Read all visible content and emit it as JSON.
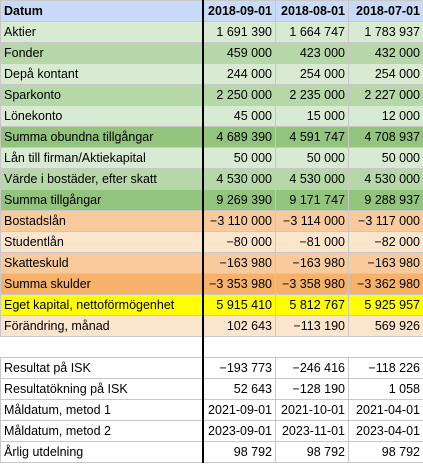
{
  "header": {
    "label": "Datum",
    "dates": [
      "2018-09-01",
      "2018-08-01",
      "2018-07-01"
    ]
  },
  "rows": [
    {
      "label": "Aktier",
      "values": [
        "1 691 390",
        "1 664 747",
        "1 783 937"
      ]
    },
    {
      "label": "Fonder",
      "values": [
        "459 000",
        "423 000",
        "432 000"
      ]
    },
    {
      "label": "Depå kontant",
      "values": [
        "244 000",
        "254 000",
        "254 000"
      ]
    },
    {
      "label": "Sparkonto",
      "values": [
        "2 250 000",
        "2 235 000",
        "2 227 000"
      ]
    },
    {
      "label": "Lönekonto",
      "values": [
        "45 000",
        "15 000",
        "12 000"
      ]
    },
    {
      "label": "Summa obundna tillgångar",
      "values": [
        "4 689 390",
        "4 591 747",
        "4 708 937"
      ]
    },
    {
      "label": "Lån till firman/Aktiekapital",
      "values": [
        "50 000",
        "50 000",
        "50 000"
      ]
    },
    {
      "label": "Värde i bostäder, efter skatt",
      "values": [
        "4 530 000",
        "4 530 000",
        "4 530 000"
      ]
    },
    {
      "label": "Summa tillgångar",
      "values": [
        "9 269 390",
        "9 171 747",
        "9 288 937"
      ]
    },
    {
      "label": "Bostadslån",
      "values": [
        "−3 110 000",
        "−3 114 000",
        "−3 117 000"
      ]
    },
    {
      "label": "Studentlån",
      "values": [
        "−80 000",
        "−81 000",
        "−82 000"
      ]
    },
    {
      "label": "Skatteskuld",
      "values": [
        "−163 980",
        "−163 980",
        "−163 980"
      ]
    },
    {
      "label": "Summa skulder",
      "values": [
        "−3 353 980",
        "−3 358 980",
        "−3 362 980"
      ]
    },
    {
      "label": "Eget kapital, nettoförmögenhet",
      "values": [
        "5 915 410",
        "5 812 767",
        "5 925 957"
      ]
    },
    {
      "label": "Förändring, månad",
      "values": [
        "102 643",
        "−113 190",
        "569 926"
      ]
    },
    {
      "label": "",
      "values": [
        "",
        "",
        ""
      ]
    },
    {
      "label": "Resultat på ISK",
      "values": [
        "−193 773",
        "−246 416",
        "−118 226"
      ]
    },
    {
      "label": "Resultatökning på ISK",
      "values": [
        "52 643",
        "−128 190",
        "1 058"
      ]
    },
    {
      "label": "Måldatum, metod 1",
      "values": [
        "2021-09-01",
        "2021-10-01",
        "2021-04-01"
      ]
    },
    {
      "label": "Måldatum, metod 2",
      "values": [
        "2023-09-01",
        "2023-11-01",
        "2023-04-01"
      ]
    },
    {
      "label": "Årlig utdelning",
      "values": [
        "98 792",
        "98 792",
        "98 792"
      ]
    }
  ],
  "colors": {
    "header": "#c9daf8",
    "asset_light": "#d9ead3",
    "asset_mid": "#b6d7a8",
    "asset_dark": "#93c47d",
    "debt_mid": "#f9cb9c",
    "debt_light": "#fce5cd",
    "debt_dark": "#f6b26b",
    "equity": "#ffff00"
  }
}
